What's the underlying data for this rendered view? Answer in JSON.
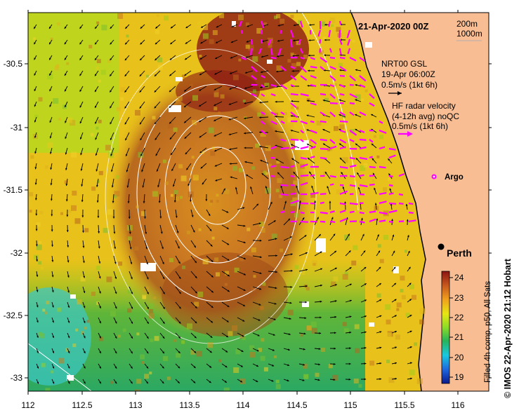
{
  "title": "21-Apr-2020 00Z",
  "depth_legend": {
    "first": "200m",
    "second": "1000m"
  },
  "gsl_legend": {
    "line1": "NRT00 GSL",
    "line2": "19-Apr 06:00Z",
    "line3": "0.5m/s (1kt 6h)"
  },
  "hf_legend": {
    "line1": "HF radar velocity",
    "line2": "(4-12h avg) noQC",
    "line3": "0.5m/s (1kt 6h)"
  },
  "argo_label": "Argo",
  "city_label": "Perth",
  "colorbar": {
    "ticks": [
      "24",
      "23",
      "22",
      "21",
      "20",
      "19"
    ],
    "label": "Filled 4h comp, p50, All Sats"
  },
  "credit": "© IMOS 22-Apr-2020 21:12 Hobart",
  "axes": {
    "x_ticks": [
      "112",
      "112.5",
      "113",
      "113.5",
      "114",
      "114.5",
      "115",
      "115.5",
      "116"
    ],
    "y_ticks": [
      "-30.5",
      "-31",
      "-31.5",
      "-32",
      "-32.5",
      "-33"
    ],
    "lon_range": [
      112,
      116.3
    ],
    "lat_range": [
      -33.1,
      -30.05
    ]
  },
  "colors": {
    "land": "#f8bd93",
    "gsl_arrow": "#000000",
    "hf_arrow": "#ff00ff",
    "contour": "#ffffff"
  }
}
